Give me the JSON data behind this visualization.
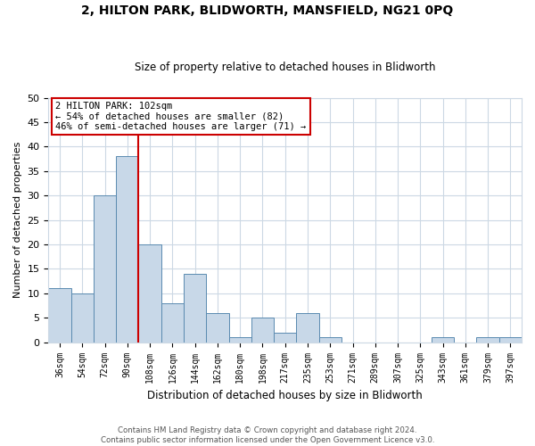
{
  "title": "2, HILTON PARK, BLIDWORTH, MANSFIELD, NG21 0PQ",
  "subtitle": "Size of property relative to detached houses in Blidworth",
  "xlabel": "Distribution of detached houses by size in Blidworth",
  "ylabel": "Number of detached properties",
  "bin_labels": [
    "36sqm",
    "54sqm",
    "72sqm",
    "90sqm",
    "108sqm",
    "126sqm",
    "144sqm",
    "162sqm",
    "180sqm",
    "198sqm",
    "217sqm",
    "235sqm",
    "253sqm",
    "271sqm",
    "289sqm",
    "307sqm",
    "325sqm",
    "343sqm",
    "361sqm",
    "379sqm",
    "397sqm"
  ],
  "bar_heights": [
    11,
    10,
    30,
    38,
    20,
    8,
    14,
    6,
    1,
    5,
    2,
    6,
    1,
    0,
    0,
    0,
    0,
    1,
    0,
    1,
    1
  ],
  "bar_color": "#c8d8e8",
  "bar_edge_color": "#5a8ab0",
  "reference_line_color": "#cc0000",
  "annotation_title": "2 HILTON PARK: 102sqm",
  "annotation_line1": "← 54% of detached houses are smaller (82)",
  "annotation_line2": "46% of semi-detached houses are larger (71) →",
  "annotation_box_color": "#ffffff",
  "annotation_box_edge": "#cc0000",
  "ylim": [
    0,
    50
  ],
  "yticks": [
    0,
    5,
    10,
    15,
    20,
    25,
    30,
    35,
    40,
    45,
    50
  ],
  "footer1": "Contains HM Land Registry data © Crown copyright and database right 2024.",
  "footer2": "Contains public sector information licensed under the Open Government Licence v3.0.",
  "bg_color": "#ffffff",
  "grid_color": "#ccd8e4"
}
